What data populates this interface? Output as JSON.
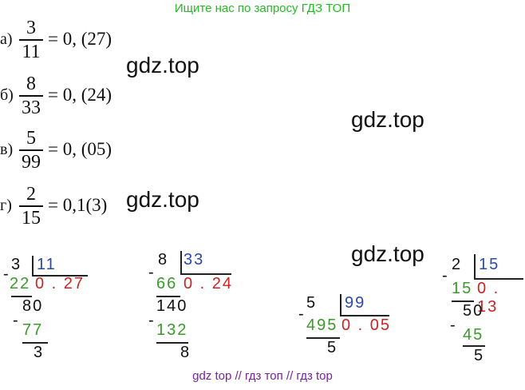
{
  "header": {
    "banner": "Ищите нас по запросу ГДЗ ТОП",
    "banner_color": "#22bb22"
  },
  "footer": {
    "banner": "gdz top  //  гдз топ  //  гдз top",
    "banner_color": "#7a1fa8"
  },
  "watermarks": [
    "gdz.top",
    "gdz.top",
    "gdz.top",
    "gdz.top"
  ],
  "equations": [
    {
      "label": "а)",
      "numerator": "3",
      "denominator": "11",
      "result": "= 0, (27)"
    },
    {
      "label": "б)",
      "numerator": "8",
      "denominator": "33",
      "result": "= 0, (24)"
    },
    {
      "label": "в)",
      "numerator": "5",
      "denominator": "99",
      "result": "= 0, (05)"
    },
    {
      "label": "г)",
      "numerator": "2",
      "denominator": "15",
      "result": "= 0,1(3)"
    }
  ],
  "divisions": [
    {
      "dividend": "3",
      "divisor": "11",
      "step1": "22",
      "quotient": "0 . 27",
      "rem1": "80",
      "step2": "77",
      "rem2": "3"
    },
    {
      "dividend": "8",
      "divisor": "33",
      "step1": "66",
      "quotient": "0 . 24",
      "rem1": "140",
      "step2": "132",
      "rem2": "8"
    },
    {
      "dividend": "5",
      "divisor": "99",
      "step1": "495",
      "quotient": "0 . 05",
      "rem1": "5"
    },
    {
      "dividend": "2",
      "divisor": "15",
      "step1": "15",
      "quotient": "0 . 13",
      "rem1": "50",
      "step2": "45",
      "rem2": "5"
    }
  ],
  "minus_sign": "-"
}
